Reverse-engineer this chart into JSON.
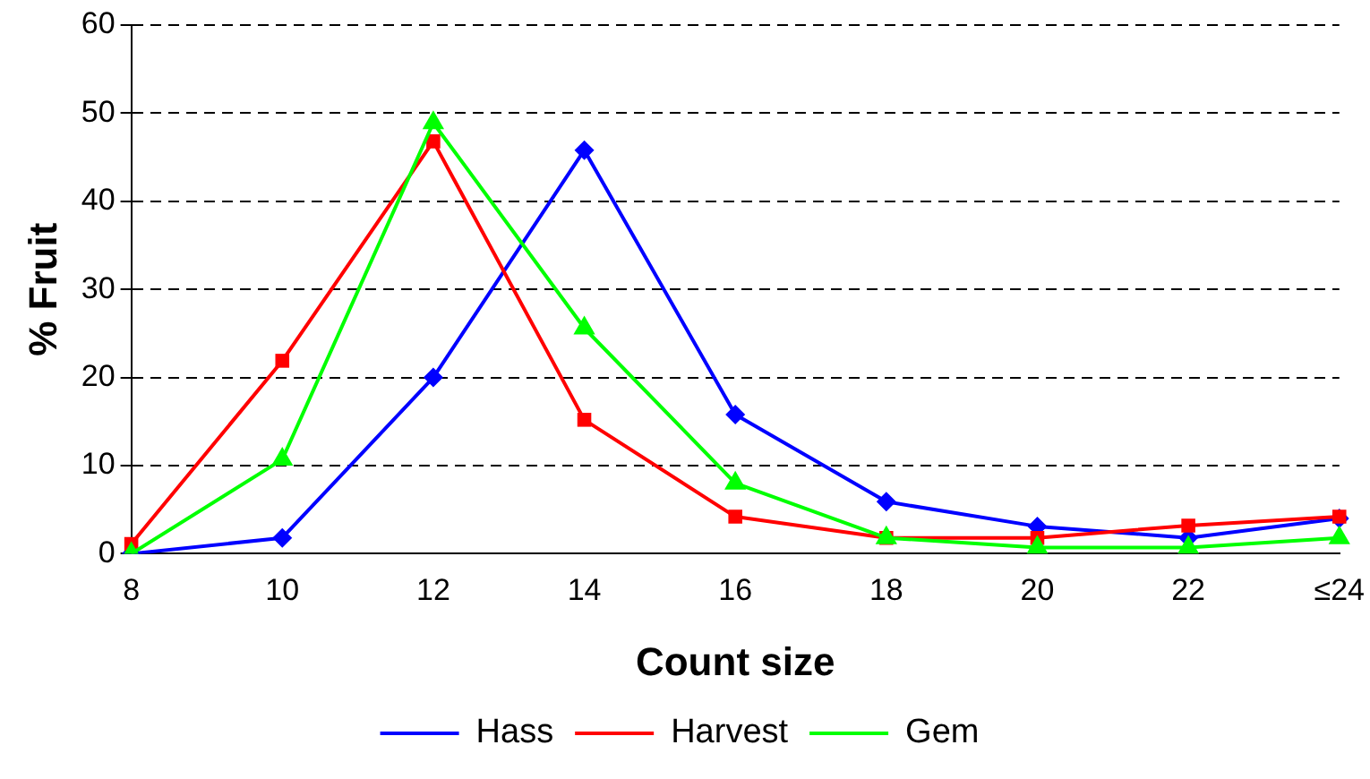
{
  "chart_data": {
    "type": "line",
    "xlabel": "Count size",
    "ylabel": "% Fruit",
    "categories": [
      "8",
      "10",
      "12",
      "14",
      "16",
      "18",
      "20",
      "22",
      "≤24"
    ],
    "series": [
      {
        "name": "Hass",
        "color": "#0000ff",
        "marker": "diamond",
        "values": [
          0,
          1.8,
          20,
          45.8,
          15.8,
          5.9,
          3.1,
          1.8,
          4
        ]
      },
      {
        "name": "Harvest",
        "color": "#ff0000",
        "marker": "square",
        "values": [
          1.1,
          21.9,
          46.8,
          15.2,
          4.2,
          1.8,
          1.8,
          3.2,
          4.2
        ]
      },
      {
        "name": "Gem",
        "color": "#00ff00",
        "marker": "triangle",
        "values": [
          0,
          10.7,
          48.9,
          25.6,
          8,
          1.8,
          0.7,
          0.7,
          1.8
        ]
      }
    ],
    "ylim": [
      0,
      60
    ],
    "yticks": [
      0,
      10,
      20,
      30,
      40,
      50,
      60
    ],
    "grid": "y",
    "legend": "bottom",
    "line_style": "solid"
  }
}
